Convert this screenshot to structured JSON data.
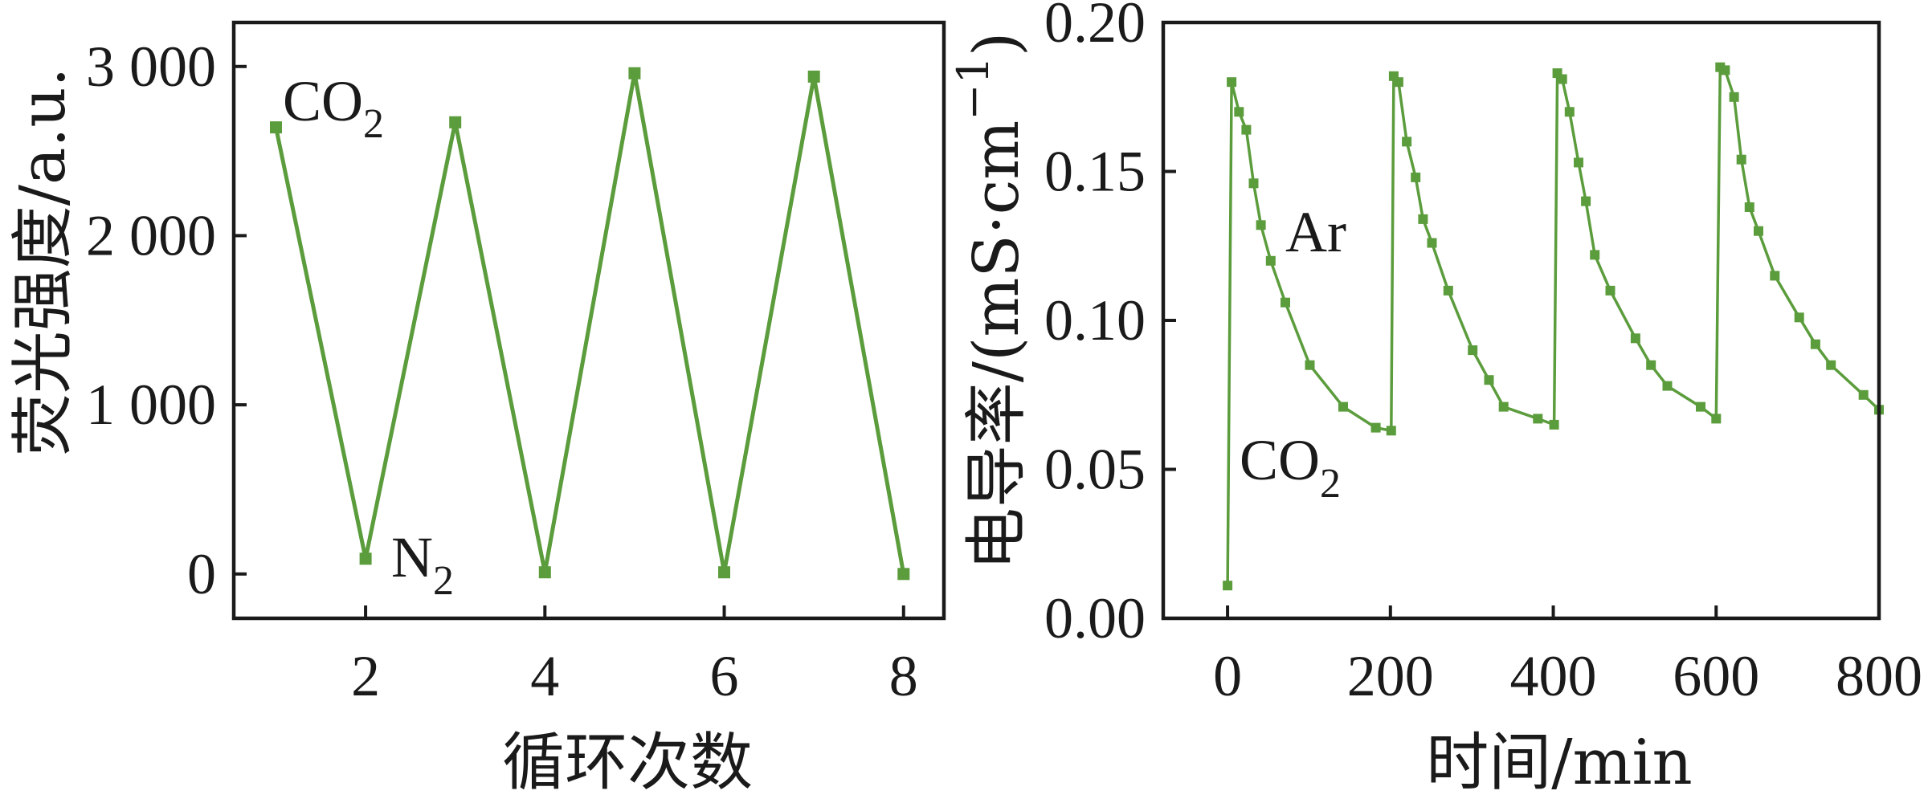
{
  "chart_data": [
    {
      "type": "line",
      "xlabel": "循环次数",
      "ylabel": "荧光强度/a.u.",
      "x": [
        1,
        2,
        3,
        4,
        5,
        6,
        7,
        8
      ],
      "series": [
        {
          "color": "#5b9c3c",
          "values": [
            2640,
            90,
            2670,
            10,
            2960,
            10,
            2940,
            0
          ]
        }
      ],
      "xlim": [
        0.53,
        8.45
      ],
      "ylim": [
        -262,
        3260
      ],
      "xticks": [
        2,
        4,
        6,
        8
      ],
      "xtick_labels": [
        "2",
        "4",
        "6",
        "8"
      ],
      "yticks": [
        0,
        1000,
        2000,
        3000
      ],
      "ytick_labels": [
        "0",
        "1 000",
        "2 000",
        "3 000"
      ],
      "annotations": [
        {
          "text": "CO",
          "sub": "2"
        },
        {
          "text": "N",
          "sub": "2"
        }
      ],
      "grid": false
    },
    {
      "type": "line",
      "xlabel": "时间/min",
      "ylabel": {
        "text": "电导率/(mS·cm",
        "sup": "−1",
        "close": ")"
      },
      "series": [
        {
          "color": "#5b9c3c",
          "x": [
            0,
            5,
            14,
            23,
            32,
            41,
            53,
            71,
            101,
            142,
            182,
            201,
            204,
            210,
            220,
            231,
            240,
            251,
            271,
            301,
            321,
            339,
            381,
            401,
            405,
            411,
            420,
            431,
            440,
            451,
            470,
            501,
            520,
            540,
            581,
            600,
            605,
            611,
            622,
            631,
            641,
            652,
            672,
            702,
            722,
            741,
            781,
            800
          ],
          "y": [
            0.011,
            0.18,
            0.17,
            0.164,
            0.146,
            0.132,
            0.12,
            0.106,
            0.085,
            0.071,
            0.064,
            0.063,
            0.182,
            0.18,
            0.16,
            0.148,
            0.134,
            0.126,
            0.11,
            0.09,
            0.08,
            0.071,
            0.067,
            0.065,
            0.183,
            0.181,
            0.17,
            0.153,
            0.14,
            0.122,
            0.11,
            0.094,
            0.085,
            0.078,
            0.071,
            0.067,
            0.185,
            0.184,
            0.175,
            0.154,
            0.138,
            0.13,
            0.115,
            0.101,
            0.092,
            0.085,
            0.075,
            0.07
          ]
        }
      ],
      "xlim": [
        -79,
        800
      ],
      "ylim": [
        0,
        0.2
      ],
      "xticks": [
        0,
        200,
        400,
        600,
        800
      ],
      "xtick_labels": [
        "0",
        "200",
        "400",
        "600",
        "800"
      ],
      "yticks": [
        0,
        0.05,
        0.1,
        0.15,
        0.2
      ],
      "ytick_labels": [
        "0.00",
        "0.05",
        "0.10",
        "0.15",
        "0.20"
      ],
      "annotations": [
        {
          "text": "Ar"
        },
        {
          "text": "CO",
          "sub": "2"
        }
      ],
      "grid": false
    }
  ]
}
